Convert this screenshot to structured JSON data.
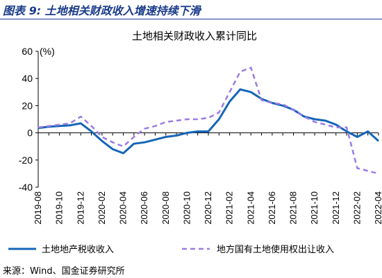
{
  "figure": {
    "title": "图表 9:  土地相关财政收入增速持续下滑",
    "source": "来源：Wind、国金证券研究所"
  },
  "colors": {
    "series1": "#1565b7",
    "series2": "#9b7be3",
    "title": "#1a3b8a"
  },
  "chart_data": {
    "type": "line",
    "title": "土地相关财政收入累计同比",
    "ylabel": "(%)",
    "xlabel": "",
    "ylim": [
      -40,
      60
    ],
    "yticks": [
      -40,
      -20,
      0,
      20,
      40,
      60
    ],
    "grid": false,
    "legend_position": "bottom",
    "x": [
      "2019-08",
      "2019-09",
      "2019-10",
      "2019-11",
      "2019-12",
      "2020-01",
      "2020-02",
      "2020-03",
      "2020-04",
      "2020-05",
      "2020-06",
      "2020-07",
      "2020-08",
      "2020-09",
      "2020-10",
      "2020-11",
      "2020-12",
      "2021-01",
      "2021-02",
      "2021-03",
      "2021-04",
      "2021-05",
      "2021-06",
      "2021-07",
      "2021-08",
      "2021-09",
      "2021-10",
      "2021-11",
      "2021-12",
      "2022-01",
      "2022-02",
      "2022-03",
      "2022-04"
    ],
    "xtick_labels": [
      "2019-08",
      "2019-10",
      "2019-12",
      "2020-02",
      "2020-04",
      "2020-06",
      "2020-08",
      "2020-10",
      "2020-12",
      "2021-02",
      "2021-04",
      "2021-06",
      "2021-08",
      "2021-10",
      "2021-12",
      "2022-02",
      "2022-04"
    ],
    "series": [
      {
        "name": "土地地产税收收入",
        "style": "solid",
        "values": [
          3.5,
          4.5,
          5,
          5.5,
          7,
          1,
          -6,
          -12,
          -15,
          -8,
          -7,
          -5,
          -3,
          -2,
          0,
          1,
          1,
          10,
          23,
          32,
          30,
          25,
          22,
          20,
          17,
          12,
          10,
          9,
          6,
          1,
          -3,
          1,
          -6
        ]
      },
      {
        "name": "地方国有土地使用权出让收入",
        "style": "dashed",
        "values": [
          4,
          5,
          6,
          7,
          12,
          5,
          -3,
          -7,
          -10,
          -3,
          3,
          5,
          8,
          9,
          10,
          10,
          11,
          15,
          30,
          45,
          48,
          24,
          22,
          21,
          17,
          12,
          8,
          6,
          4,
          4,
          -26,
          -28,
          -30
        ]
      }
    ]
  }
}
